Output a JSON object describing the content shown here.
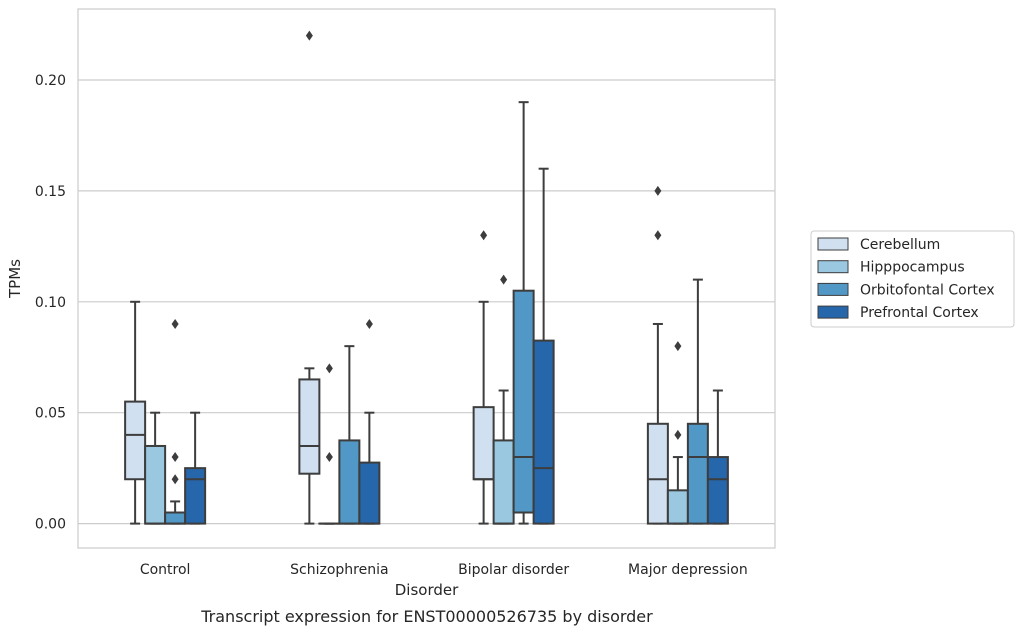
{
  "chart_data": {
    "type": "box",
    "title": "",
    "caption": "Transcript expression for ENST00000526735 by disorder",
    "xlabel": "Disorder",
    "ylabel": "TPMs",
    "ylim": [
      -0.011,
      0.232
    ],
    "yticks": [
      "0.00",
      "0.05",
      "0.10",
      "0.15",
      "0.20"
    ],
    "grid": true,
    "legend_position": "right",
    "categories": [
      "Control",
      "Schizophrenia",
      "Bipolar disorder",
      "Major depression"
    ],
    "series": [
      {
        "name": "Cerebellum",
        "color": "#d1e0f0",
        "boxes": [
          {
            "whisker_low": 0.0,
            "q1": 0.02,
            "median": 0.04,
            "q3": 0.055,
            "whisker_high": 0.1,
            "outliers": []
          },
          {
            "whisker_low": 0.0,
            "q1": 0.0225,
            "median": 0.035,
            "q3": 0.065,
            "whisker_high": 0.07,
            "outliers": [
              0.22
            ]
          },
          {
            "whisker_low": 0.0,
            "q1": 0.02,
            "median": 0.02,
            "q3": 0.0525,
            "whisker_high": 0.1,
            "outliers": [
              0.13
            ]
          },
          {
            "whisker_low": 0.0,
            "q1": 0.0,
            "median": 0.02,
            "q3": 0.045,
            "whisker_high": 0.09,
            "outliers": [
              0.13,
              0.15
            ]
          }
        ]
      },
      {
        "name": "Hipppocampus",
        "color": "#9ac8e0",
        "boxes": [
          {
            "whisker_low": 0.0,
            "q1": 0.0,
            "median": 0.0,
            "q3": 0.035,
            "whisker_high": 0.05,
            "outliers": []
          },
          {
            "whisker_low": 0.0,
            "q1": 0.0,
            "median": 0.0,
            "q3": 0.0,
            "whisker_high": 0.0,
            "outliers": [
              0.03,
              0.07
            ]
          },
          {
            "whisker_low": 0.0,
            "q1": 0.0,
            "median": 0.0,
            "q3": 0.0375,
            "whisker_high": 0.06,
            "outliers": [
              0.11
            ]
          },
          {
            "whisker_low": 0.0,
            "q1": 0.0,
            "median": 0.0,
            "q3": 0.015,
            "whisker_high": 0.03,
            "outliers": [
              0.04,
              0.08
            ]
          }
        ]
      },
      {
        "name": "Orbitofontal Cortex",
        "color": "#5298c6",
        "boxes": [
          {
            "whisker_low": 0.0,
            "q1": 0.0,
            "median": 0.0,
            "q3": 0.005,
            "whisker_high": 0.01,
            "outliers": [
              0.02,
              0.03,
              0.09
            ]
          },
          {
            "whisker_low": 0.0,
            "q1": 0.0,
            "median": 0.0,
            "q3": 0.0375,
            "whisker_high": 0.08,
            "outliers": []
          },
          {
            "whisker_low": 0.0,
            "q1": 0.005,
            "median": 0.03,
            "q3": 0.105,
            "whisker_high": 0.19,
            "outliers": []
          },
          {
            "whisker_low": 0.0,
            "q1": 0.0,
            "median": 0.03,
            "q3": 0.045,
            "whisker_high": 0.11,
            "outliers": []
          }
        ]
      },
      {
        "name": "Prefrontal Cortex",
        "color": "#2666ab",
        "boxes": [
          {
            "whisker_low": 0.0,
            "q1": 0.0,
            "median": 0.02,
            "q3": 0.025,
            "whisker_high": 0.05,
            "outliers": []
          },
          {
            "whisker_low": 0.0,
            "q1": 0.0,
            "median": 0.0,
            "q3": 0.0275,
            "whisker_high": 0.05,
            "outliers": [
              0.09
            ]
          },
          {
            "whisker_low": 0.0,
            "q1": 0.0,
            "median": 0.025,
            "q3": 0.0825,
            "whisker_high": 0.16,
            "outliers": []
          },
          {
            "whisker_low": 0.0,
            "q1": 0.0,
            "median": 0.02,
            "q3": 0.03,
            "whisker_high": 0.06,
            "outliers": []
          }
        ]
      }
    ]
  }
}
